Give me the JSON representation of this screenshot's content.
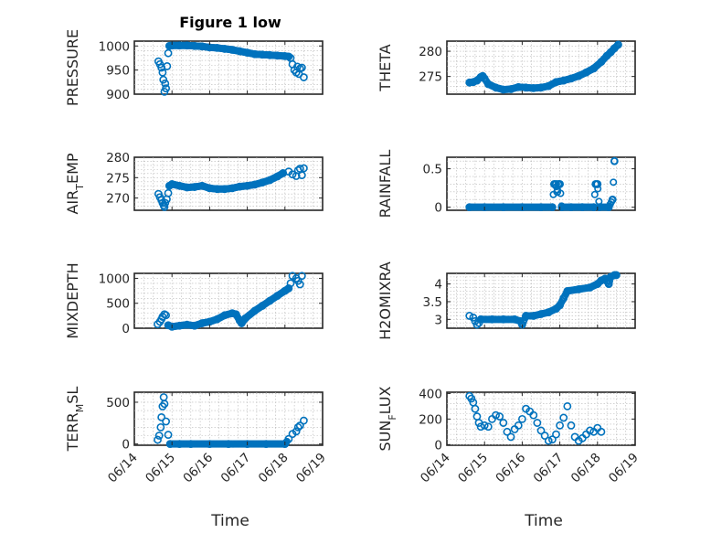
{
  "figure": {
    "title": "Figure 1 low",
    "xlabel": "Time",
    "marker_color": "#0072BD",
    "axis_color": "#262626"
  },
  "chart_data": [
    {
      "type": "scatter",
      "title": "Figure 1 low",
      "ylabel": "PRESSURE",
      "ylabel_sub": "",
      "xlim": [
        0,
        5
      ],
      "ylim": [
        900,
        1010
      ],
      "yticks": [
        900,
        950,
        1000
      ],
      "grid": true,
      "xticks": [
        "06/14",
        "06/15",
        "06/16",
        "06/17",
        "06/18",
        "06/19"
      ],
      "xtick_labels_visible": false,
      "points": [
        [
          0.64,
          968
        ],
        [
          0.68,
          962
        ],
        [
          0.72,
          955
        ],
        [
          0.75,
          945
        ],
        [
          0.77,
          930
        ],
        [
          0.8,
          905
        ],
        [
          0.82,
          922
        ],
        [
          0.84,
          912
        ],
        [
          0.87,
          958
        ],
        [
          0.9,
          985
        ],
        [
          0.93,
          1000
        ],
        [
          1.0,
          1001
        ],
        [
          1.2,
          1001
        ],
        [
          1.4,
          1001
        ],
        [
          1.6,
          1000
        ],
        [
          1.8,
          999
        ],
        [
          2.0,
          997
        ],
        [
          2.2,
          996
        ],
        [
          2.4,
          994
        ],
        [
          2.6,
          992
        ],
        [
          2.8,
          989
        ],
        [
          3.0,
          986
        ],
        [
          3.2,
          983
        ],
        [
          3.4,
          982
        ],
        [
          3.6,
          981
        ],
        [
          3.8,
          980
        ],
        [
          4.0,
          979
        ],
        [
          4.1,
          978
        ],
        [
          4.15,
          975
        ],
        [
          4.2,
          962
        ],
        [
          4.25,
          950
        ],
        [
          4.3,
          945
        ],
        [
          4.33,
          957
        ],
        [
          4.37,
          942
        ],
        [
          4.4,
          953
        ],
        [
          4.45,
          955
        ],
        [
          4.5,
          935
        ]
      ],
      "line_x": [
        0.93,
        4.1
      ],
      "line_y": [
        1001,
        978
      ]
    },
    {
      "type": "scatter",
      "title": "",
      "ylabel": "THETA",
      "ylabel_sub": "",
      "xlim": [
        0,
        5
      ],
      "ylim": [
        271.5,
        282
      ],
      "yticks": [
        275,
        280
      ],
      "grid": true,
      "xticks": [
        "06/14",
        "06/15",
        "06/16",
        "06/17",
        "06/18",
        "06/19"
      ],
      "xtick_labels_visible": false,
      "points": [
        [
          0.6,
          273.8
        ],
        [
          0.7,
          273.9
        ],
        [
          0.8,
          274.2
        ],
        [
          0.9,
          274.9
        ],
        [
          0.95,
          275.1
        ],
        [
          1.0,
          274.6
        ],
        [
          1.1,
          273.5
        ],
        [
          1.3,
          272.8
        ],
        [
          1.5,
          272.4
        ],
        [
          1.7,
          272.5
        ],
        [
          1.9,
          272.9
        ],
        [
          2.1,
          272.8
        ],
        [
          2.3,
          272.7
        ],
        [
          2.5,
          272.8
        ],
        [
          2.7,
          273.1
        ],
        [
          2.9,
          273.9
        ],
        [
          3.1,
          274.2
        ],
        [
          3.3,
          274.6
        ],
        [
          3.5,
          275.1
        ],
        [
          3.7,
          275.8
        ],
        [
          3.9,
          276.6
        ],
        [
          4.1,
          277.9
        ],
        [
          4.25,
          279.1
        ],
        [
          4.35,
          279.8
        ],
        [
          4.45,
          280.6
        ],
        [
          4.55,
          281.3
        ]
      ],
      "line_x": [
        0.6,
        4.55
      ],
      "line_y": [
        273.8,
        281.3
      ]
    },
    {
      "type": "scatter",
      "title": "",
      "ylabel": "AIR",
      "ylabel_sub": "T",
      "ylabel_tail": "EMP",
      "xlim": [
        0,
        5
      ],
      "ylim": [
        267,
        280
      ],
      "yticks": [
        270,
        275,
        280
      ],
      "grid": true,
      "xticks": [
        "06/14",
        "06/15",
        "06/16",
        "06/17",
        "06/18",
        "06/19"
      ],
      "xtick_labels_visible": false,
      "points": [
        [
          0.64,
          271
        ],
        [
          0.68,
          270.2
        ],
        [
          0.72,
          269.5
        ],
        [
          0.75,
          268.8
        ],
        [
          0.78,
          268.2
        ],
        [
          0.8,
          267.8
        ],
        [
          0.82,
          268.8
        ],
        [
          0.86,
          269.7
        ],
        [
          0.9,
          271.2
        ],
        [
          0.93,
          273
        ],
        [
          1.0,
          273.4
        ],
        [
          1.2,
          273
        ],
        [
          1.4,
          272.6
        ],
        [
          1.6,
          272.7
        ],
        [
          1.8,
          273
        ],
        [
          2.0,
          272.4
        ],
        [
          2.2,
          272.2
        ],
        [
          2.4,
          272.2
        ],
        [
          2.6,
          272.4
        ],
        [
          2.8,
          272.8
        ],
        [
          3.0,
          273
        ],
        [
          3.2,
          273.3
        ],
        [
          3.4,
          273.8
        ],
        [
          3.6,
          274.4
        ],
        [
          3.8,
          275.3
        ],
        [
          3.95,
          276.1
        ],
        [
          4.1,
          276.5
        ],
        [
          4.2,
          275.8
        ],
        [
          4.3,
          275.4
        ],
        [
          4.35,
          276.8
        ],
        [
          4.4,
          277.2
        ],
        [
          4.45,
          275.6
        ],
        [
          4.5,
          277.3
        ]
      ],
      "line_x": [
        0.93,
        3.95
      ],
      "line_y": [
        273,
        276
      ]
    },
    {
      "type": "scatter",
      "title": "",
      "ylabel": "RAINFALL",
      "ylabel_sub": "",
      "xlim": [
        0,
        5
      ],
      "ylim": [
        -0.04,
        0.65
      ],
      "yticks": [
        0,
        0.5
      ],
      "grid": true,
      "xticks": [
        "06/14",
        "06/15",
        "06/16",
        "06/17",
        "06/18",
        "06/19"
      ],
      "xtick_labels_visible": false,
      "points": [
        [
          0.6,
          0
        ],
        [
          1.0,
          0
        ],
        [
          1.5,
          0
        ],
        [
          2.0,
          0
        ],
        [
          2.5,
          0
        ],
        [
          2.8,
          0
        ],
        [
          2.85,
          0.3
        ],
        [
          2.9,
          0.3
        ],
        [
          2.93,
          0.2
        ],
        [
          2.96,
          0.3
        ],
        [
          3.0,
          0.3
        ],
        [
          3.05,
          0
        ],
        [
          3.3,
          0
        ],
        [
          3.6,
          0
        ],
        [
          3.9,
          0
        ],
        [
          3.95,
          0.3
        ],
        [
          4.0,
          0.3
        ],
        [
          4.05,
          0
        ],
        [
          4.3,
          0
        ],
        [
          4.4,
          0.1
        ],
        [
          4.45,
          0.6
        ]
      ],
      "line_x": [
        0.6,
        4.45
      ],
      "line_y": [
        0,
        0
      ]
    },
    {
      "type": "scatter",
      "title": "",
      "ylabel": "MIXDEPTH",
      "ylabel_sub": "",
      "xlim": [
        0,
        5
      ],
      "ylim": [
        0,
        1100
      ],
      "yticks": [
        0,
        500,
        1000
      ],
      "grid": true,
      "xticks": [
        "06/14",
        "06/15",
        "06/16",
        "06/17",
        "06/18",
        "06/19"
      ],
      "xtick_labels_visible": false,
      "points": [
        [
          0.62,
          80
        ],
        [
          0.68,
          130
        ],
        [
          0.72,
          180
        ],
        [
          0.75,
          230
        ],
        [
          0.8,
          280
        ],
        [
          0.84,
          260
        ],
        [
          0.9,
          60
        ],
        [
          1.0,
          30
        ],
        [
          1.2,
          50
        ],
        [
          1.4,
          70
        ],
        [
          1.6,
          50
        ],
        [
          1.8,
          100
        ],
        [
          2.0,
          130
        ],
        [
          2.2,
          180
        ],
        [
          2.4,
          260
        ],
        [
          2.6,
          300
        ],
        [
          2.7,
          280
        ],
        [
          2.8,
          150
        ],
        [
          2.85,
          100
        ],
        [
          2.95,
          200
        ],
        [
          3.2,
          350
        ],
        [
          3.4,
          450
        ],
        [
          3.6,
          550
        ],
        [
          3.8,
          650
        ],
        [
          4.0,
          750
        ],
        [
          4.1,
          800
        ],
        [
          4.15,
          900
        ],
        [
          4.2,
          1050
        ],
        [
          4.3,
          1000
        ],
        [
          4.35,
          950
        ],
        [
          4.4,
          880
        ],
        [
          4.45,
          1050
        ]
      ],
      "line_x": [
        0.9,
        4.1
      ],
      "line_y": [
        30,
        800
      ]
    },
    {
      "type": "scatter",
      "title": "",
      "ylabel": "H2OMIXRA",
      "ylabel_sub": "",
      "xlim": [
        0,
        5
      ],
      "ylim": [
        2.75,
        4.3
      ],
      "yticks": [
        3,
        3.5,
        4
      ],
      "grid": true,
      "xticks": [
        "06/14",
        "06/15",
        "06/16",
        "06/17",
        "06/18",
        "06/19"
      ],
      "xtick_labels_visible": false,
      "points": [
        [
          0.6,
          3.1
        ],
        [
          0.7,
          3.05
        ],
        [
          0.75,
          2.95
        ],
        [
          0.8,
          2.85
        ],
        [
          0.85,
          2.9
        ],
        [
          0.9,
          3.0
        ],
        [
          1.2,
          3.0
        ],
        [
          1.5,
          3.0
        ],
        [
          1.8,
          3.0
        ],
        [
          1.95,
          2.95
        ],
        [
          2.0,
          2.85
        ],
        [
          2.1,
          3.1
        ],
        [
          2.3,
          3.1
        ],
        [
          2.5,
          3.15
        ],
        [
          2.7,
          3.2
        ],
        [
          2.9,
          3.3
        ],
        [
          3.0,
          3.4
        ],
        [
          3.1,
          3.6
        ],
        [
          3.2,
          3.8
        ],
        [
          3.5,
          3.85
        ],
        [
          3.8,
          3.9
        ],
        [
          4.0,
          4.0
        ],
        [
          4.1,
          4.1
        ],
        [
          4.2,
          4.15
        ],
        [
          4.3,
          4.0
        ],
        [
          4.35,
          4.2
        ],
        [
          4.45,
          4.25
        ],
        [
          4.5,
          4.25
        ]
      ],
      "line_x": [
        0.9,
        4.5
      ],
      "line_y": [
        3.0,
        4.25
      ]
    },
    {
      "type": "scatter",
      "title": "",
      "ylabel": "TERR",
      "ylabel_sub": "M",
      "ylabel_tail": "SL",
      "xlim": [
        0,
        5
      ],
      "ylim": [
        -15,
        620
      ],
      "yticks": [
        0,
        500
      ],
      "grid": true,
      "xticks": [
        "06/14",
        "06/15",
        "06/16",
        "06/17",
        "06/18",
        "06/19"
      ],
      "xtick_labels_visible": true,
      "points": [
        [
          0.62,
          50
        ],
        [
          0.66,
          100
        ],
        [
          0.7,
          200
        ],
        [
          0.72,
          320
        ],
        [
          0.75,
          450
        ],
        [
          0.78,
          560
        ],
        [
          0.8,
          480
        ],
        [
          0.84,
          270
        ],
        [
          0.9,
          110
        ],
        [
          0.95,
          0
        ],
        [
          1.2,
          0
        ],
        [
          1.5,
          0
        ],
        [
          2.0,
          0
        ],
        [
          2.5,
          0
        ],
        [
          3.0,
          0
        ],
        [
          3.5,
          0
        ],
        [
          4.0,
          0
        ],
        [
          4.1,
          60
        ],
        [
          4.2,
          120
        ],
        [
          4.3,
          150
        ],
        [
          4.35,
          200
        ],
        [
          4.4,
          220
        ],
        [
          4.5,
          280
        ]
      ],
      "line_x": [
        0.95,
        4.05
      ],
      "line_y": [
        0,
        0
      ]
    },
    {
      "type": "scatter",
      "title": "",
      "ylabel": "SUN",
      "ylabel_sub": "F",
      "ylabel_tail": "LUX",
      "xlim": [
        0,
        5
      ],
      "ylim": [
        -5,
        410
      ],
      "yticks": [
        0,
        200,
        400
      ],
      "grid": true,
      "xticks": [
        "06/14",
        "06/15",
        "06/16",
        "06/17",
        "06/18",
        "06/19"
      ],
      "xtick_labels_visible": true,
      "points": [
        [
          0.6,
          380
        ],
        [
          0.65,
          360
        ],
        [
          0.7,
          330
        ],
        [
          0.75,
          280
        ],
        [
          0.8,
          220
        ],
        [
          0.85,
          170
        ],
        [
          0.9,
          140
        ],
        [
          1.0,
          150
        ],
        [
          1.1,
          140
        ],
        [
          1.2,
          200
        ],
        [
          1.3,
          230
        ],
        [
          1.4,
          220
        ],
        [
          1.5,
          170
        ],
        [
          1.6,
          100
        ],
        [
          1.7,
          60
        ],
        [
          1.8,
          120
        ],
        [
          1.9,
          150
        ],
        [
          2.0,
          200
        ],
        [
          2.1,
          280
        ],
        [
          2.2,
          260
        ],
        [
          2.3,
          230
        ],
        [
          2.4,
          170
        ],
        [
          2.5,
          110
        ],
        [
          2.6,
          70
        ],
        [
          2.7,
          30
        ],
        [
          2.8,
          40
        ],
        [
          2.9,
          80
        ],
        [
          3.0,
          150
        ],
        [
          3.1,
          210
        ],
        [
          3.2,
          300
        ],
        [
          3.3,
          150
        ],
        [
          3.4,
          60
        ],
        [
          3.5,
          30
        ],
        [
          3.6,
          50
        ],
        [
          3.7,
          80
        ],
        [
          3.8,
          110
        ],
        [
          3.9,
          100
        ],
        [
          4.0,
          130
        ],
        [
          4.1,
          100
        ]
      ],
      "line_x": [],
      "line_y": []
    }
  ]
}
